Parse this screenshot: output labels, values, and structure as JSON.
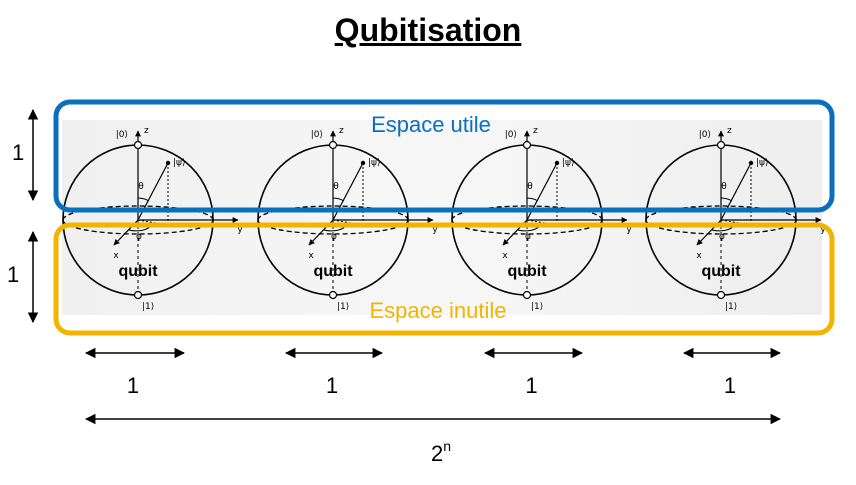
{
  "title": "Qubitisation",
  "labels": {
    "useful_space": "Espace utile",
    "useless_space": "Espace inutile"
  },
  "colors": {
    "useful": "#0b6fc0",
    "useless": "#f3b400"
  },
  "sphere": {
    "ket0": "|0⟩",
    "ket1": "|1⟩",
    "psi": "|ψ⟩",
    "axis_z": "z",
    "axis_x": "x",
    "axis_y": "y",
    "theta": "θ",
    "phi": "φ",
    "qubit_label": "qubit"
  },
  "qubit_count": 4,
  "dimensions": {
    "height_upper": "1",
    "height_lower": "1",
    "width_each": [
      "1",
      "1",
      "1",
      "1"
    ],
    "total_base": "2",
    "total_exp": "n"
  }
}
